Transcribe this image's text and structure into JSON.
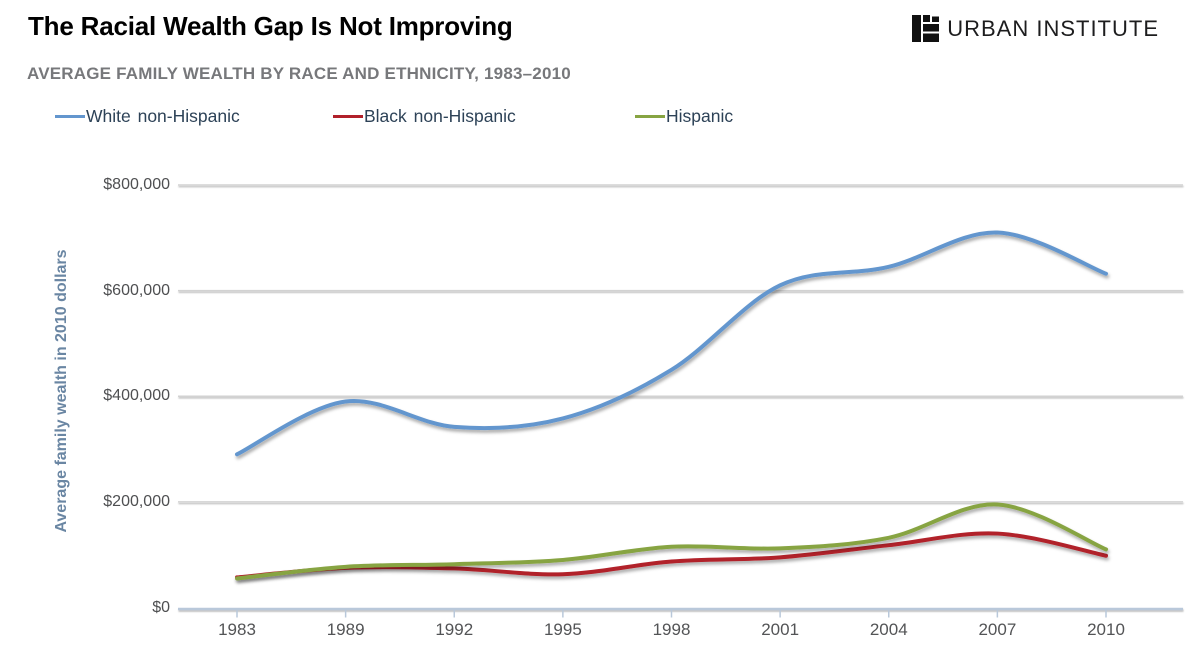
{
  "header": {
    "title": "The Racial Wealth Gap Is Not Improving",
    "brand": "URBAN INSTITUTE",
    "brand_icon": "urban-institute-logo-mark"
  },
  "chart_data": {
    "type": "line",
    "title": "AVERAGE FAMILY WEALTH BY RACE AND ETHNICITY, 1983–2010",
    "xlabel": "",
    "ylabel": "Average family wealth in 2010 dollars",
    "categories": [
      "1983",
      "1989",
      "1992",
      "1995",
      "1998",
      "2001",
      "2004",
      "2007",
      "2010"
    ],
    "series": [
      {
        "name": "White non-Hispanic",
        "color": "#6396ce",
        "values": [
          290000,
          390000,
          342000,
          358000,
          450000,
          610000,
          645000,
          710000,
          632000
        ]
      },
      {
        "name": "Black non-Hispanic",
        "color": "#b1202a",
        "values": [
          57000,
          75000,
          74000,
          63000,
          87000,
          95000,
          118000,
          140000,
          98000
        ]
      },
      {
        "name": "Hispanic",
        "color": "#87a442",
        "values": [
          55000,
          77000,
          82000,
          90000,
          115000,
          112000,
          132000,
          195000,
          110000
        ]
      }
    ],
    "ylim": [
      0,
      800000
    ],
    "ytick_values": [
      0,
      200000,
      400000,
      600000,
      800000
    ],
    "ytick_labels": [
      "$0",
      "$200,000",
      "$400,000",
      "$600,000",
      "$800,000"
    ],
    "grid": "horizontal-only",
    "legend_position": "top-left",
    "line_style": "smooth-spline-with-drop-shadow"
  },
  "colors": {
    "grid": "#d2d2d2",
    "axis": "#b9c8da",
    "title": "#000000",
    "subtitle": "#77787b",
    "legend_text": "#2d4257",
    "y_tick_text": "#4e4f51",
    "x_tick_text": "#535456",
    "axis_title_text": "#6a86a3",
    "brand_text": "#1d1d1e"
  }
}
